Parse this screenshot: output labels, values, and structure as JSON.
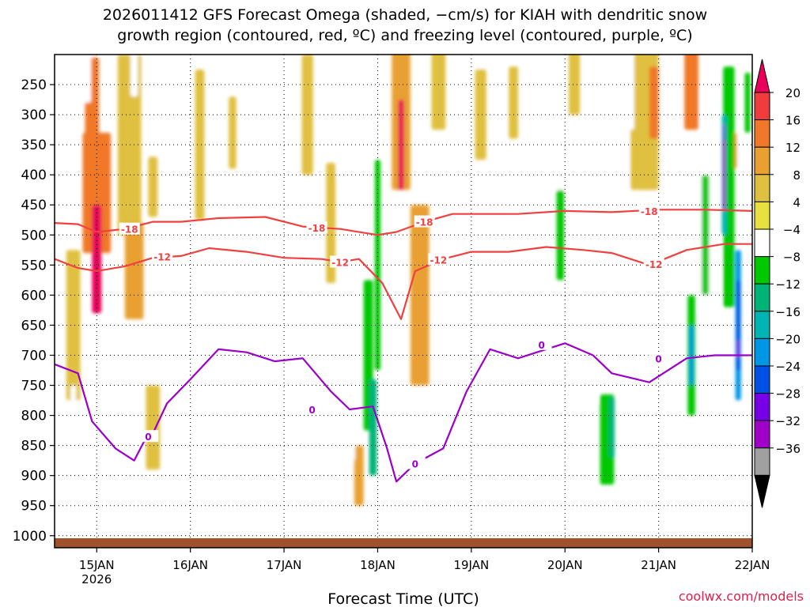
{
  "chart_data": {
    "type": "heatmap",
    "title_line1": "2026011412 GFS Forecast Omega (shaded, −cm/s) for KIAH with dendritic snow",
    "title_line2": "growth region (contoured, red, ºC) and freezing level (contoured, purple, ºC)",
    "xlabel": "Forecast Time (UTC)",
    "ylabel": "",
    "credit": "coolwx.com/models",
    "x_range_days": [
      14.55,
      22.0
    ],
    "y_range_hpa": [
      1020,
      200
    ],
    "x_ticks": [
      {
        "day": 15,
        "label": "15JAN",
        "sub": "2026"
      },
      {
        "day": 16,
        "label": "16JAN",
        "sub": ""
      },
      {
        "day": 17,
        "label": "17JAN",
        "sub": ""
      },
      {
        "day": 18,
        "label": "18JAN",
        "sub": ""
      },
      {
        "day": 19,
        "label": "19JAN",
        "sub": ""
      },
      {
        "day": 20,
        "label": "20JAN",
        "sub": ""
      },
      {
        "day": 21,
        "label": "21JAN",
        "sub": ""
      },
      {
        "day": 22,
        "label": "22JAN",
        "sub": ""
      }
    ],
    "y_ticks": [
      250,
      300,
      350,
      400,
      450,
      500,
      550,
      600,
      650,
      700,
      750,
      800,
      850,
      900,
      950,
      1000
    ],
    "colorbar": {
      "labels": [
        "20",
        "16",
        "12",
        "8",
        "4",
        "−4",
        "−8",
        "−12",
        "−16",
        "−20",
        "−24",
        "−28",
        "−32",
        "−36"
      ],
      "colors": [
        "#e8005a",
        "#f03c3c",
        "#f07828",
        "#e8a030",
        "#e0c040",
        "#e8e040",
        "#ffffff",
        "#00c800",
        "#00b478",
        "#00b4b4",
        "#0096e6",
        "#0050e6",
        "#7800e6",
        "#a000c8",
        "#a0a0a0",
        "#000000"
      ]
    },
    "contour_labels": {
      "dgz_upper": "-18",
      "dgz_lower": "-12",
      "freezing": "0"
    },
    "dgz_minus18_line": [
      [
        14.55,
        480
      ],
      [
        14.8,
        482
      ],
      [
        15.0,
        495
      ],
      [
        15.3,
        490
      ],
      [
        15.6,
        478
      ],
      [
        15.9,
        478
      ],
      [
        16.3,
        472
      ],
      [
        16.8,
        470
      ],
      [
        17.2,
        486
      ],
      [
        17.6,
        490
      ],
      [
        18.0,
        500
      ],
      [
        18.2,
        495
      ],
      [
        18.5,
        478
      ],
      [
        18.8,
        465
      ],
      [
        19.5,
        465
      ],
      [
        20.0,
        460
      ],
      [
        20.5,
        462
      ],
      [
        21.0,
        458
      ],
      [
        21.5,
        458
      ],
      [
        22.0,
        460
      ]
    ],
    "dgz_minus12_line": [
      [
        14.55,
        540
      ],
      [
        14.8,
        555
      ],
      [
        15.0,
        560
      ],
      [
        15.3,
        552
      ],
      [
        15.6,
        538
      ],
      [
        15.9,
        535
      ],
      [
        16.2,
        522
      ],
      [
        16.6,
        528
      ],
      [
        17.0,
        538
      ],
      [
        17.4,
        540
      ],
      [
        17.6,
        545
      ],
      [
        17.8,
        540
      ],
      [
        18.05,
        580
      ],
      [
        18.25,
        640
      ],
      [
        18.4,
        560
      ],
      [
        18.7,
        540
      ],
      [
        19.0,
        528
      ],
      [
        19.4,
        528
      ],
      [
        19.8,
        520
      ],
      [
        20.2,
        525
      ],
      [
        20.5,
        530
      ],
      [
        20.9,
        550
      ],
      [
        21.3,
        525
      ],
      [
        21.7,
        515
      ],
      [
        22.0,
        515
      ]
    ],
    "freezing_line": [
      [
        14.55,
        715
      ],
      [
        14.8,
        730
      ],
      [
        14.95,
        810
      ],
      [
        15.2,
        855
      ],
      [
        15.4,
        875
      ],
      [
        15.5,
        845
      ],
      [
        15.6,
        830
      ],
      [
        15.75,
        780
      ],
      [
        16.0,
        740
      ],
      [
        16.3,
        690
      ],
      [
        16.6,
        695
      ],
      [
        16.9,
        710
      ],
      [
        17.2,
        705
      ],
      [
        17.5,
        760
      ],
      [
        17.7,
        790
      ],
      [
        17.95,
        785
      ],
      [
        18.1,
        855
      ],
      [
        18.2,
        910
      ],
      [
        18.4,
        880
      ],
      [
        18.7,
        855
      ],
      [
        18.95,
        760
      ],
      [
        19.2,
        690
      ],
      [
        19.5,
        705
      ],
      [
        20.0,
        680
      ],
      [
        20.3,
        700
      ],
      [
        20.5,
        730
      ],
      [
        20.9,
        745
      ],
      [
        21.3,
        705
      ],
      [
        21.6,
        700
      ],
      [
        22.0,
        700
      ]
    ],
    "omega_cells": [
      {
        "day": 15.0,
        "p": 430,
        "w": 0.3,
        "h": 200,
        "v": 12
      },
      {
        "day": 15.0,
        "p": 540,
        "w": 0.1,
        "h": 180,
        "v": 20
      },
      {
        "day": 14.95,
        "p": 280,
        "w": 0.15,
        "h": 150,
        "v": 12
      },
      {
        "day": 15.35,
        "p": 350,
        "w": 0.25,
        "h": 300,
        "v": 6
      },
      {
        "day": 15.4,
        "p": 560,
        "w": 0.2,
        "h": 160,
        "v": 10
      },
      {
        "day": 14.75,
        "p": 650,
        "w": 0.15,
        "h": 250,
        "v": 5
      },
      {
        "day": 15.6,
        "p": 820,
        "w": 0.15,
        "h": 140,
        "v": 6
      },
      {
        "day": 16.1,
        "p": 350,
        "w": 0.1,
        "h": 250,
        "v": 5
      },
      {
        "day": 17.25,
        "p": 300,
        "w": 0.12,
        "h": 200,
        "v": 5
      },
      {
        "day": 17.5,
        "p": 480,
        "w": 0.1,
        "h": 200,
        "v": 5
      },
      {
        "day": 18.25,
        "p": 300,
        "w": 0.2,
        "h": 250,
        "v": 10
      },
      {
        "day": 18.25,
        "p": 350,
        "w": 0.06,
        "h": 150,
        "v": 20
      },
      {
        "day": 18.45,
        "p": 600,
        "w": 0.2,
        "h": 300,
        "v": 8
      },
      {
        "day": 18.65,
        "p": 250,
        "w": 0.15,
        "h": 150,
        "v": 6
      },
      {
        "day": 19.1,
        "p": 300,
        "w": 0.12,
        "h": 150,
        "v": 5
      },
      {
        "day": 19.45,
        "p": 280,
        "w": 0.1,
        "h": 120,
        "v": 5
      },
      {
        "day": 20.1,
        "p": 240,
        "w": 0.12,
        "h": 120,
        "v": 5
      },
      {
        "day": 20.85,
        "p": 300,
        "w": 0.3,
        "h": 250,
        "v": 6
      },
      {
        "day": 20.95,
        "p": 280,
        "w": 0.1,
        "h": 120,
        "v": 12
      },
      {
        "day": 21.35,
        "p": 250,
        "w": 0.15,
        "h": 150,
        "v": 12
      },
      {
        "day": 21.8,
        "p": 360,
        "w": 0.06,
        "h": 60,
        "v": 12
      },
      {
        "day": 17.8,
        "p": 900,
        "w": 0.1,
        "h": 100,
        "v": 8
      },
      {
        "day": 15.6,
        "p": 420,
        "w": 0.1,
        "h": 100,
        "v": 5
      },
      {
        "day": 16.45,
        "p": 330,
        "w": 0.08,
        "h": 120,
        "v": 5
      },
      {
        "day": 17.7,
        "p": 800,
        "w": 0.12,
        "h": 150,
        "v": -8
      },
      {
        "day": 17.9,
        "p": 700,
        "w": 0.1,
        "h": 250,
        "v": -10
      },
      {
        "day": 18.0,
        "p": 550,
        "w": 0.06,
        "h": 350,
        "v": -12
      },
      {
        "day": 17.95,
        "p": 820,
        "w": 0.08,
        "h": 160,
        "v": -16
      },
      {
        "day": 16.9,
        "p": 780,
        "w": 0.1,
        "h": 120,
        "v": -6
      },
      {
        "day": 17.6,
        "p": 350,
        "w": 0.06,
        "h": 120,
        "v": -6
      },
      {
        "day": 16.75,
        "p": 250,
        "w": 0.06,
        "h": 100,
        "v": -6
      },
      {
        "day": 16.8,
        "p": 330,
        "w": 0.08,
        "h": 160,
        "v": -6
      },
      {
        "day": 15.4,
        "p": 220,
        "w": 0.08,
        "h": 100,
        "v": -6
      },
      {
        "day": 14.9,
        "p": 230,
        "w": 0.08,
        "h": 100,
        "v": -6
      },
      {
        "day": 14.75,
        "p": 800,
        "w": 0.06,
        "h": 100,
        "v": -6
      },
      {
        "day": 19.95,
        "p": 300,
        "w": 0.1,
        "h": 250,
        "v": -8
      },
      {
        "day": 19.95,
        "p": 500,
        "w": 0.08,
        "h": 150,
        "v": -12
      },
      {
        "day": 20.7,
        "p": 250,
        "w": 0.08,
        "h": 150,
        "v": -8
      },
      {
        "day": 20.65,
        "p": 380,
        "w": 0.06,
        "h": 100,
        "v": -8
      },
      {
        "day": 20.45,
        "p": 840,
        "w": 0.15,
        "h": 150,
        "v": -10
      },
      {
        "day": 20.5,
        "p": 820,
        "w": 0.06,
        "h": 100,
        "v": -16
      },
      {
        "day": 21.1,
        "p": 780,
        "w": 0.15,
        "h": 150,
        "v": -8
      },
      {
        "day": 21.35,
        "p": 700,
        "w": 0.08,
        "h": 200,
        "v": -12
      },
      {
        "day": 21.35,
        "p": 700,
        "w": 0.04,
        "h": 100,
        "v": -24
      },
      {
        "day": 21.5,
        "p": 480,
        "w": 0.12,
        "h": 300,
        "v": -8
      },
      {
        "day": 21.5,
        "p": 500,
        "w": 0.08,
        "h": 200,
        "v": -12
      },
      {
        "day": 21.5,
        "p": 300,
        "w": 0.1,
        "h": 100,
        "v": -8
      },
      {
        "day": 21.75,
        "p": 300,
        "w": 0.12,
        "h": 150,
        "v": -10
      },
      {
        "day": 21.75,
        "p": 420,
        "w": 0.12,
        "h": 400,
        "v": -12
      },
      {
        "day": 21.7,
        "p": 400,
        "w": 0.05,
        "h": 200,
        "v": -20
      },
      {
        "day": 21.7,
        "p": 400,
        "w": 0.03,
        "h": 120,
        "v": -36
      },
      {
        "day": 21.7,
        "p": 330,
        "w": 0.02,
        "h": 30,
        "v": -32
      },
      {
        "day": 21.85,
        "p": 650,
        "w": 0.06,
        "h": 250,
        "v": -24
      },
      {
        "day": 21.85,
        "p": 650,
        "w": 0.04,
        "h": 150,
        "v": -28
      },
      {
        "day": 21.85,
        "p": 690,
        "w": 0.03,
        "h": 30,
        "v": -32
      },
      {
        "day": 21.95,
        "p": 280,
        "w": 0.06,
        "h": 100,
        "v": -12
      },
      {
        "day": 20.4,
        "p": 560,
        "w": 0.06,
        "h": 100,
        "v": -8
      },
      {
        "day": 20.3,
        "p": 740,
        "w": 0.08,
        "h": 80,
        "v": -8
      },
      {
        "day": 21.6,
        "p": 600,
        "w": 0.12,
        "h": 200,
        "v": -8
      },
      {
        "day": 20.7,
        "p": 640,
        "w": 0.08,
        "h": 80,
        "v": -6
      },
      {
        "day": 19.7,
        "p": 700,
        "w": 0.08,
        "h": 80,
        "v": -6
      },
      {
        "day": 19.4,
        "p": 700,
        "w": 0.06,
        "h": 80,
        "v": -6
      }
    ]
  }
}
